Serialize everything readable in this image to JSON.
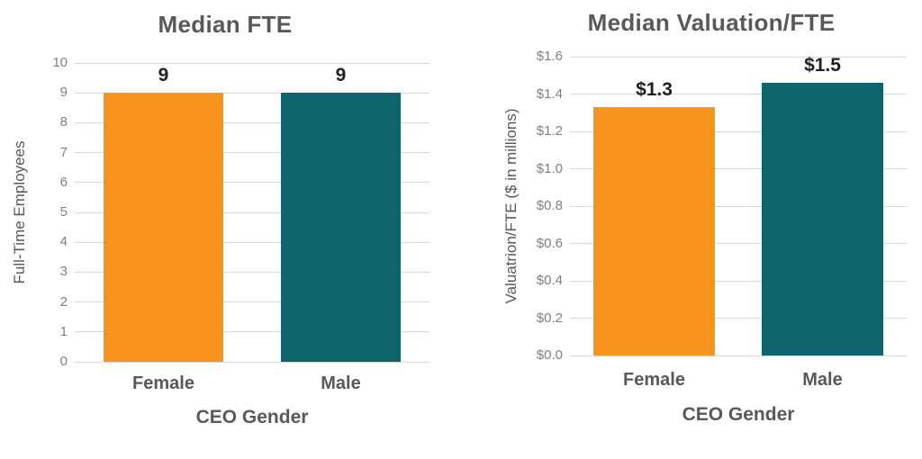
{
  "page": {
    "background": "#ffffff"
  },
  "colors": {
    "female_bar": "#F7941E",
    "male_bar": "#0F646C",
    "title_text": "#595959",
    "axis_title_text": "#595959",
    "tick_text": "#7F7F7F",
    "category_text": "#595959",
    "data_label_text": "#1F1F1F",
    "gridline": "#D9D9D9"
  },
  "chart_data": [
    {
      "type": "bar",
      "title": "Median FTE",
      "xlabel": "CEO Gender",
      "ylabel": "Full-Time Employees",
      "categories": [
        "Female",
        "Male"
      ],
      "values": [
        9,
        9
      ],
      "data_labels": [
        "9",
        "9"
      ],
      "bar_colors": [
        "#F7941E",
        "#0F646C"
      ],
      "ylim": [
        0,
        10
      ],
      "ytick_step": 1,
      "yticks_bottom_to_top": [
        "0",
        "1",
        "2",
        "3",
        "4",
        "5",
        "6",
        "7",
        "8",
        "9",
        "10"
      ],
      "grid": true,
      "legend": "none"
    },
    {
      "type": "bar",
      "title": "Median Valuation/FTE",
      "xlabel": "CEO Gender",
      "ylabel": "Valuatrion/FTE ($ in millions)",
      "categories": [
        "Female",
        "Male"
      ],
      "values": [
        1.33,
        1.46
      ],
      "data_labels": [
        "$1.3",
        "$1.5"
      ],
      "bar_colors": [
        "#F7941E",
        "#0F646C"
      ],
      "ylim": [
        0,
        1.6
      ],
      "ytick_step": 0.2,
      "yticks_bottom_to_top": [
        "$0.0",
        "$0.2",
        "$0.4",
        "$0.6",
        "$0.8",
        "$1.0",
        "$1.2",
        "$1.4",
        "$1.6"
      ],
      "grid": true,
      "legend": "none"
    }
  ]
}
